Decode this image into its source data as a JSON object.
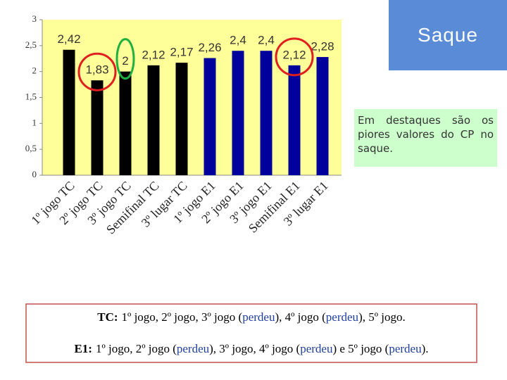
{
  "title": "Saque",
  "note": "Em destaques são os piores valores do CP no saque.",
  "chart_data": {
    "type": "bar",
    "categories": [
      "1º jogo TC",
      "2º jogo TC",
      "3º jogo TC",
      "Semifinal TC",
      "3º lugar TC",
      "1º jogo E1",
      "2º jogo E1",
      "3º jogo E1",
      "Semifinal E1",
      "3º lugar E1"
    ],
    "values": [
      2.42,
      1.83,
      2,
      2.12,
      2.17,
      2.26,
      2.4,
      2.4,
      2.12,
      2.28
    ],
    "value_labels": [
      "2,42",
      "1,83",
      "2",
      "2,12",
      "2,17",
      "2,26",
      "2,4",
      "2,4",
      "2,12",
      "2,28"
    ],
    "colors": [
      "#000000",
      "#000000",
      "#000000",
      "#000000",
      "#000000",
      "#00009c",
      "#00009c",
      "#00009c",
      "#00009c",
      "#00009c"
    ],
    "ylim": [
      0,
      3
    ],
    "yticks": [
      0,
      {
        "value": 0.5,
        "label": "0,5"
      },
      1,
      {
        "value": 1.5,
        "label": "1,5"
      },
      2,
      {
        "value": 2.5,
        "label": "2,5"
      },
      3
    ],
    "background": "#ffff99"
  },
  "summary": {
    "lines": [
      {
        "label": "TC:",
        "parts": [
          "1º jogo, 2º jogo, 3º jogo (",
          "perdeu",
          "), 4º jogo (",
          "perdeu",
          "), 5º jogo."
        ]
      },
      {
        "label": "E1:",
        "parts": [
          "1º jogo, 2º jogo (",
          "perdeu",
          "), 3º jogo, 4º jogo (",
          "perdeu",
          ") e 5º jogo (",
          "perdeu",
          ")."
        ]
      }
    ]
  }
}
